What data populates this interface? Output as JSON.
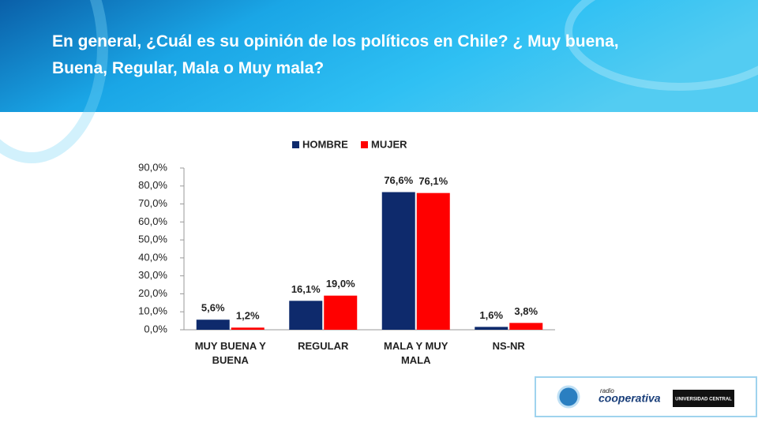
{
  "header": {
    "title": "En general, ¿Cuál es su opinión de los políticos en Chile?  ¿ Muy buena, Buena, Regular, Mala o Muy mala?"
  },
  "chart_data": {
    "type": "bar",
    "categories": [
      "MUY BUENA Y BUENA",
      "REGULAR",
      "MALA Y MUY MALA",
      "NS-NR"
    ],
    "series": [
      {
        "name": "HOMBRE",
        "color": "#0e2a6c",
        "values": [
          5.6,
          16.1,
          76.6,
          1.6
        ],
        "value_labels": [
          "5,6%",
          "16,1%",
          "76,6%",
          "1,6%"
        ]
      },
      {
        "name": "MUJER",
        "color": "#ff0000",
        "values": [
          1.2,
          19.0,
          76.1,
          3.8
        ],
        "value_labels": [
          "1,2%",
          "19,0%",
          "76,1%",
          "3,8%"
        ]
      }
    ],
    "ylim": [
      0,
      90
    ],
    "yticks": [
      {
        "value": 0,
        "label": "0,0%"
      },
      {
        "value": 10,
        "label": "10,0%"
      },
      {
        "value": 20,
        "label": "20,0%"
      },
      {
        "value": 30,
        "label": "30,0%"
      },
      {
        "value": 40,
        "label": "40,0%"
      },
      {
        "value": 50,
        "label": "50,0%"
      },
      {
        "value": 60,
        "label": "60,0%"
      },
      {
        "value": 70,
        "label": "70,0%"
      },
      {
        "value": 80,
        "label": "80,0%"
      },
      {
        "value": 90,
        "label": "90,0%"
      }
    ],
    "legend": "top"
  },
  "logos": {
    "radio": "radio",
    "name": "cooperativa",
    "university": "UNIVERSIDAD CENTRAL"
  }
}
